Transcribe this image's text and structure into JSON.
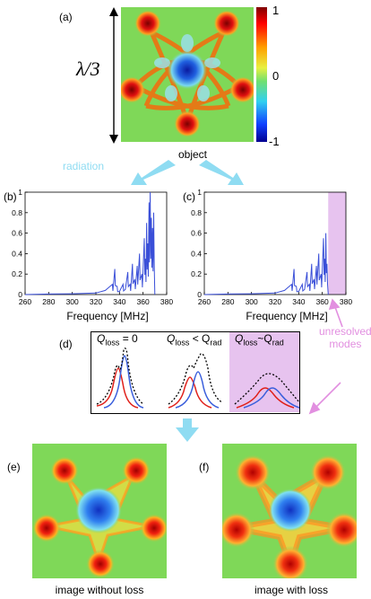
{
  "panels": {
    "a": "(a)",
    "b": "(b)",
    "c": "(c)",
    "d": "(d)",
    "e": "(e)",
    "f": "(f)"
  },
  "scale_label": "λ/3",
  "colorbar": {
    "max": "1",
    "mid": "0",
    "min": "-1"
  },
  "captions": {
    "object": "object",
    "radiation": "radiation",
    "image_without_loss": "image without loss",
    "image_with_loss": "image with loss",
    "unresolved": [
      "unresolved",
      "modes"
    ]
  },
  "colors": {
    "arrow": "#8fdcf2",
    "unresolved": "#e7c3ef",
    "unresolved_text": "#e28fe0",
    "spectrum": "#3a4fd8",
    "curve_red": "#e0201a",
    "curve_blue": "#3a5fdc"
  },
  "mode_boxes": [
    {
      "q": "Q",
      "loss": "loss",
      "rel": "= 0",
      "rhs": "",
      "rad": ""
    },
    {
      "q": "Q",
      "loss": "loss",
      "rel": "< Q",
      "rhs": "",
      "rad": "rad"
    },
    {
      "q": "Q",
      "loss": "loss",
      "rel": "~Q",
      "rhs": "",
      "rad": "rad"
    }
  ],
  "chart_data": [
    {
      "type": "line",
      "panel": "(b)",
      "xlabel": "Frequency [MHz]",
      "ylabel": "",
      "xlim": [
        260,
        380
      ],
      "ylim": [
        0,
        1
      ],
      "xticks": [
        "260",
        "280",
        "300",
        "320",
        "340",
        "360",
        "380"
      ],
      "yticks": [
        "0",
        "0.2",
        "0.4",
        "0.6",
        "0.8",
        "1"
      ],
      "x": [
        260,
        280,
        300,
        320,
        328,
        334,
        336,
        338,
        340,
        343,
        345,
        347,
        349,
        351,
        353,
        355,
        357,
        359,
        361,
        362,
        363,
        364,
        365,
        366,
        367,
        368,
        369,
        370
      ],
      "y": [
        0,
        0.005,
        0.008,
        0.015,
        0.04,
        0.1,
        0.25,
        0.08,
        0.03,
        0.1,
        0.05,
        0.22,
        0.1,
        0.3,
        0.15,
        0.28,
        0.4,
        0.2,
        0.55,
        0.35,
        0.7,
        0.5,
        0.9,
        1.0,
        0.75,
        0.65,
        0.8,
        0.0
      ]
    },
    {
      "type": "line",
      "panel": "(c)",
      "xlabel": "Frequency [MHz]",
      "ylabel": "",
      "xlim": [
        260,
        380
      ],
      "ylim": [
        0,
        1
      ],
      "xticks": [
        "260",
        "280",
        "300",
        "320",
        "340",
        "360",
        "380"
      ],
      "yticks": [
        "0",
        "0.2",
        "0.4",
        "0.6",
        "0.8",
        "1"
      ],
      "x": [
        260,
        280,
        300,
        320,
        328,
        334,
        336,
        338,
        340,
        343,
        345,
        347,
        349,
        351,
        353,
        355,
        357,
        359,
        361,
        362,
        363,
        364,
        365
      ],
      "y": [
        0,
        0.005,
        0.008,
        0.015,
        0.04,
        0.1,
        0.25,
        0.08,
        0.03,
        0.1,
        0.05,
        0.22,
        0.1,
        0.3,
        0.15,
        0.28,
        0.4,
        0.2,
        0.55,
        0.35,
        0.6,
        0.3,
        0.0
      ],
      "shaded_region": [
        365,
        380
      ]
    }
  ]
}
